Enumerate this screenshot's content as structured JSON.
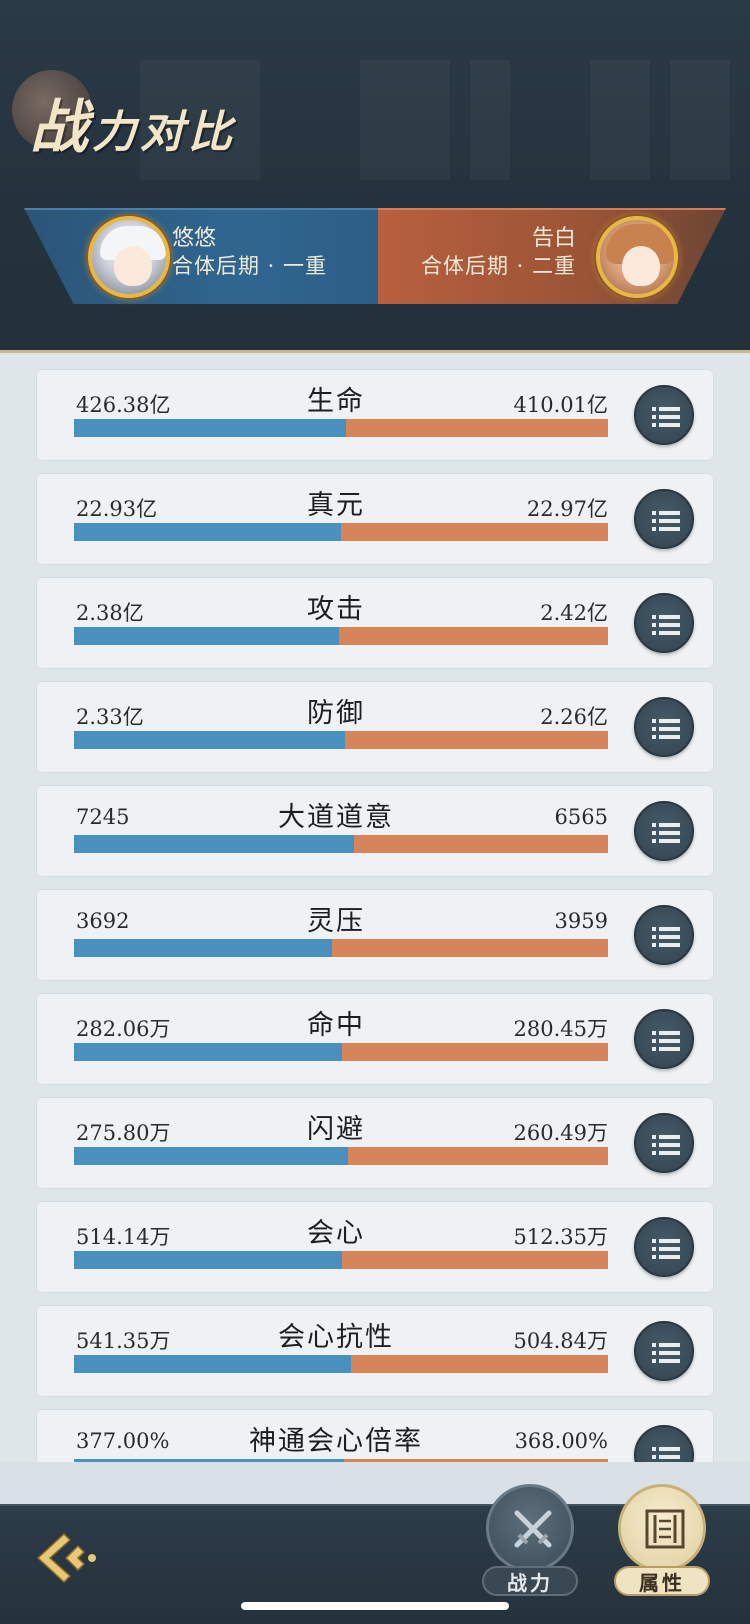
{
  "page": {
    "title_big": "战",
    "title_rest": "力对比"
  },
  "players": {
    "left": {
      "name": "悠悠",
      "realm": "合体后期 · 一重"
    },
    "right": {
      "name": "告白",
      "realm": "合体后期 · 二重"
    }
  },
  "colors": {
    "left_bar": "#4a90bf",
    "right_bar": "#d6855a",
    "header_bg": "#24323e",
    "title": "#f3e6c8"
  },
  "stats": [
    {
      "name": "生命",
      "left": "426.38亿",
      "right": "410.01亿",
      "left_share": 0.51
    },
    {
      "name": "真元",
      "left": "22.93亿",
      "right": "22.97亿",
      "left_share": 0.5
    },
    {
      "name": "攻击",
      "left": "2.38亿",
      "right": "2.42亿",
      "left_share": 0.496
    },
    {
      "name": "防御",
      "left": "2.33亿",
      "right": "2.26亿",
      "left_share": 0.508
    },
    {
      "name": "大道道意",
      "left": "7245",
      "right": "6565",
      "left_share": 0.525
    },
    {
      "name": "灵压",
      "left": "3692",
      "right": "3959",
      "left_share": 0.483
    },
    {
      "name": "命中",
      "left": "282.06万",
      "right": "280.45万",
      "left_share": 0.501
    },
    {
      "name": "闪避",
      "left": "275.80万",
      "right": "260.49万",
      "left_share": 0.514
    },
    {
      "name": "会心",
      "left": "514.14万",
      "right": "512.35万",
      "left_share": 0.502
    },
    {
      "name": "会心抗性",
      "left": "541.35万",
      "right": "504.84万",
      "left_share": 0.518
    },
    {
      "name": "神通会心倍率",
      "left": "377.00%",
      "right": "368.00%",
      "left_share": 0.506
    }
  ],
  "tabs": {
    "power": "战力",
    "attributes": "属性"
  },
  "icons": {
    "detail": "list-icon",
    "back": "back-arrow-icon",
    "power_tab": "crossed-swords-icon",
    "attr_tab": "scroll-icon"
  }
}
